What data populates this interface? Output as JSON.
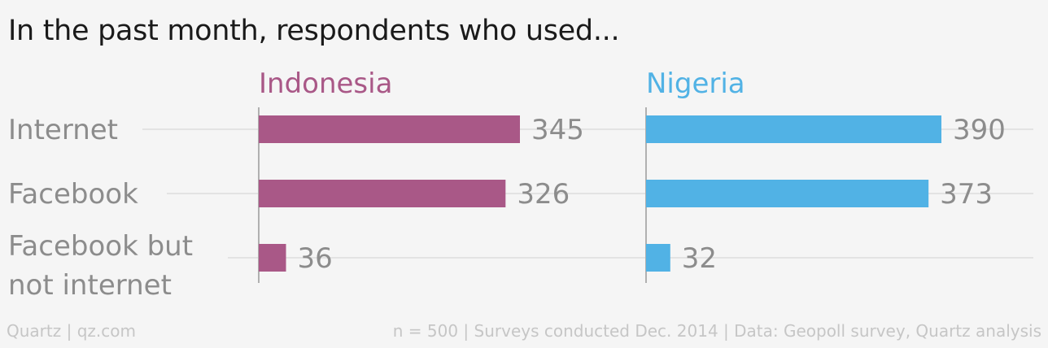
{
  "chart_data": {
    "type": "bar",
    "orientation": "horizontal",
    "title": "In the past month, respondents who used...",
    "categories": [
      [
        "Internet"
      ],
      [
        "Facebook"
      ],
      [
        "Facebook but",
        "not internet"
      ]
    ],
    "series": [
      {
        "name": "Indonesia",
        "color": "#a95887",
        "values": [
          345,
          326,
          36
        ]
      },
      {
        "name": "Nigeria",
        "color": "#51b2e5",
        "values": [
          390,
          373,
          32
        ]
      }
    ],
    "gridlines": true,
    "legend": "series labels above each panel"
  },
  "footer": {
    "source_left": "Quartz | qz.com",
    "source_right": "n = 500 | Surveys conducted Dec. 2014 | Data: Geopoll survey, Quartz analysis"
  }
}
